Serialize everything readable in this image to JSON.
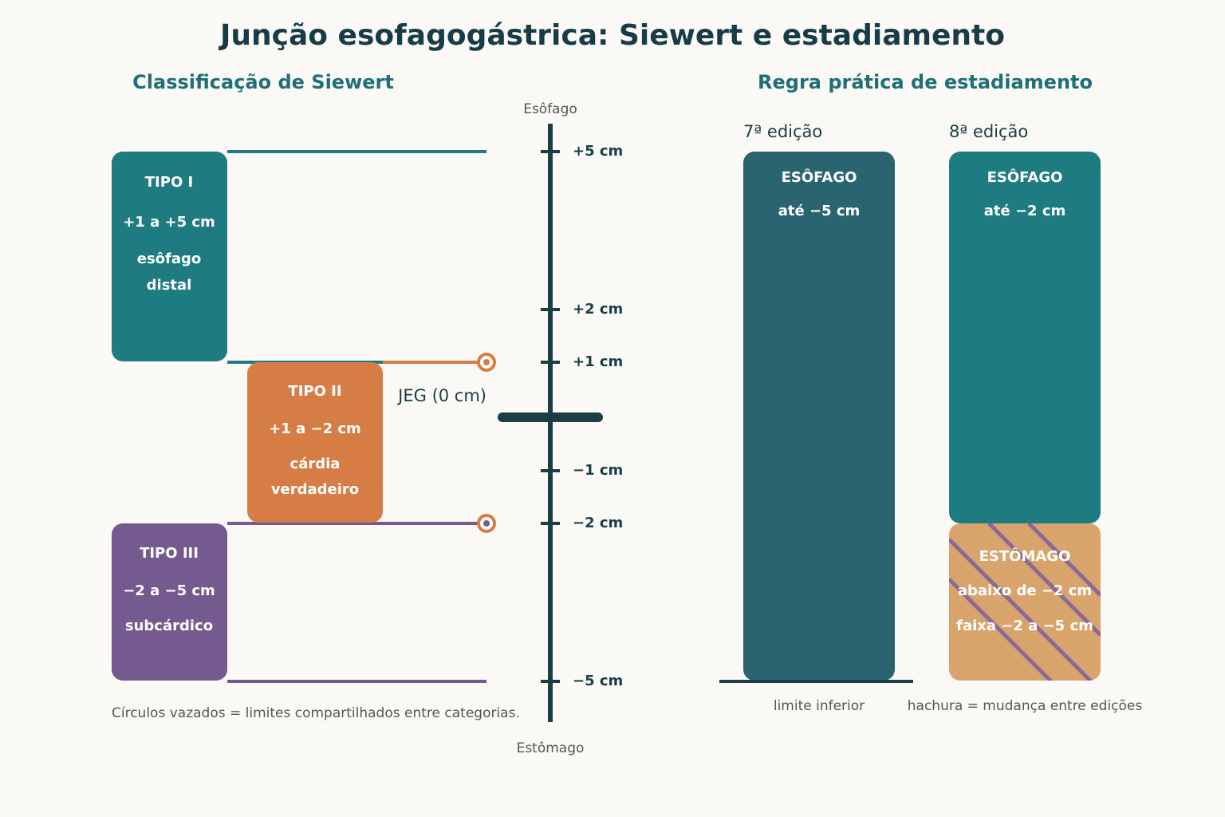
{
  "title": "Junção esofagogástrica: Siewert e estadiamento",
  "siewert": {
    "heading": "Classificação de Siewert",
    "axis_top": "Esôfago",
    "axis_bottom": "Estômago",
    "ticks": [
      "+5 cm",
      "+2 cm",
      "+1 cm",
      "−1 cm",
      "−2 cm",
      "−5 cm"
    ],
    "jeg_label": "JEG (0 cm)",
    "types": [
      {
        "name": "TIPO I",
        "range": "+1 a +5 cm",
        "lines": [
          "esôfago",
          "distal"
        ]
      },
      {
        "name": "TIPO II",
        "range": "+1 a −2 cm",
        "lines": [
          "cárdia",
          "verdadeiro"
        ]
      },
      {
        "name": "TIPO III",
        "range": "−2 a −5 cm",
        "lines": [
          "subcárdico"
        ]
      }
    ],
    "note": "Círculos vazados = limites compartilhados entre categorias."
  },
  "staging": {
    "heading": "Regra prática de estadiamento",
    "editions": [
      {
        "label": "7ª edição",
        "segments": [
          {
            "name": "ESÔFAGO",
            "lines": [
              "até −5 cm"
            ]
          }
        ]
      },
      {
        "label": "8ª edição",
        "segments": [
          {
            "name": "ESÔFAGO",
            "lines": [
              "até −2 cm"
            ]
          },
          {
            "name": "ESTÔMAGO",
            "lines": [
              "abaixo de −2 cm",
              "faixa −2 a −5 cm"
            ]
          }
        ]
      }
    ],
    "caption_left": "limite inferior",
    "caption_right": "hachura = mudança entre edições"
  }
}
